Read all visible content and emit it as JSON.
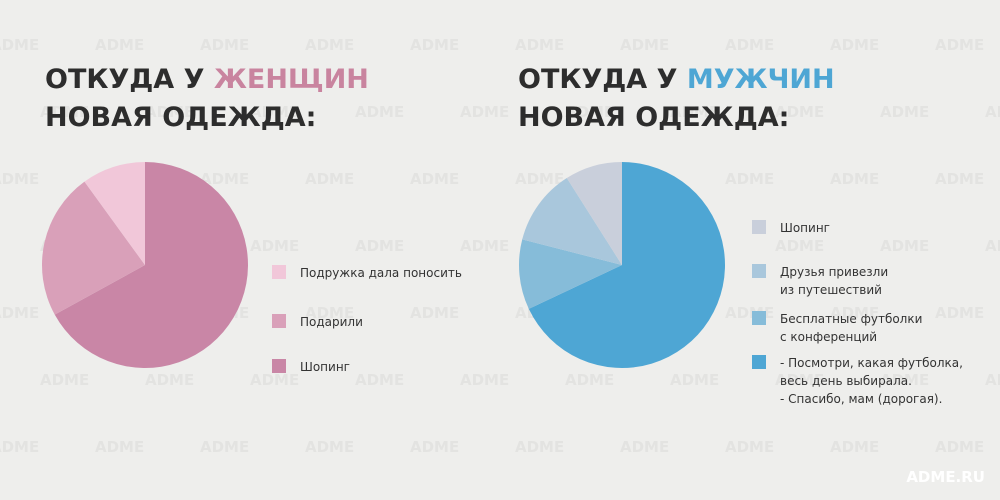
{
  "chart_data": [
    {
      "type": "pie",
      "title": {
        "prefix": "ОТКУДА У",
        "highlight": "ЖЕНЩИН",
        "line2": "НОВАЯ ОДЕЖДА:"
      },
      "highlight_color": "#c9849f",
      "categories": [
        [
          "Подружка дала поносить"
        ],
        [
          "Подарили"
        ],
        [
          "Шопинг"
        ]
      ],
      "values": [
        10,
        23,
        67
      ],
      "colors": [
        "#f1c7d9",
        "#d9a0b9",
        "#c986a6"
      ]
    },
    {
      "type": "pie",
      "title": {
        "prefix": "ОТКУДА У",
        "highlight": "МУЖЧИН",
        "line2": "НОВАЯ ОДЕЖДА:"
      },
      "highlight_color": "#4ea6d4",
      "categories": [
        [
          "Шопинг"
        ],
        [
          "Друзья привезли",
          "из путешествий"
        ],
        [
          "Бесплатные футболки",
          "с конференций"
        ],
        [
          "- Посмотри, какая футболка,",
          "весь день выбирала.",
          "- Спасибо, мам (дорогая)."
        ]
      ],
      "values": [
        9,
        12,
        11,
        68
      ],
      "colors": [
        "#c9cfdb",
        "#a9c7dc",
        "#86bcd9",
        "#4ea6d4"
      ]
    }
  ],
  "watermark": "ADME",
  "source": "ADME.RU"
}
